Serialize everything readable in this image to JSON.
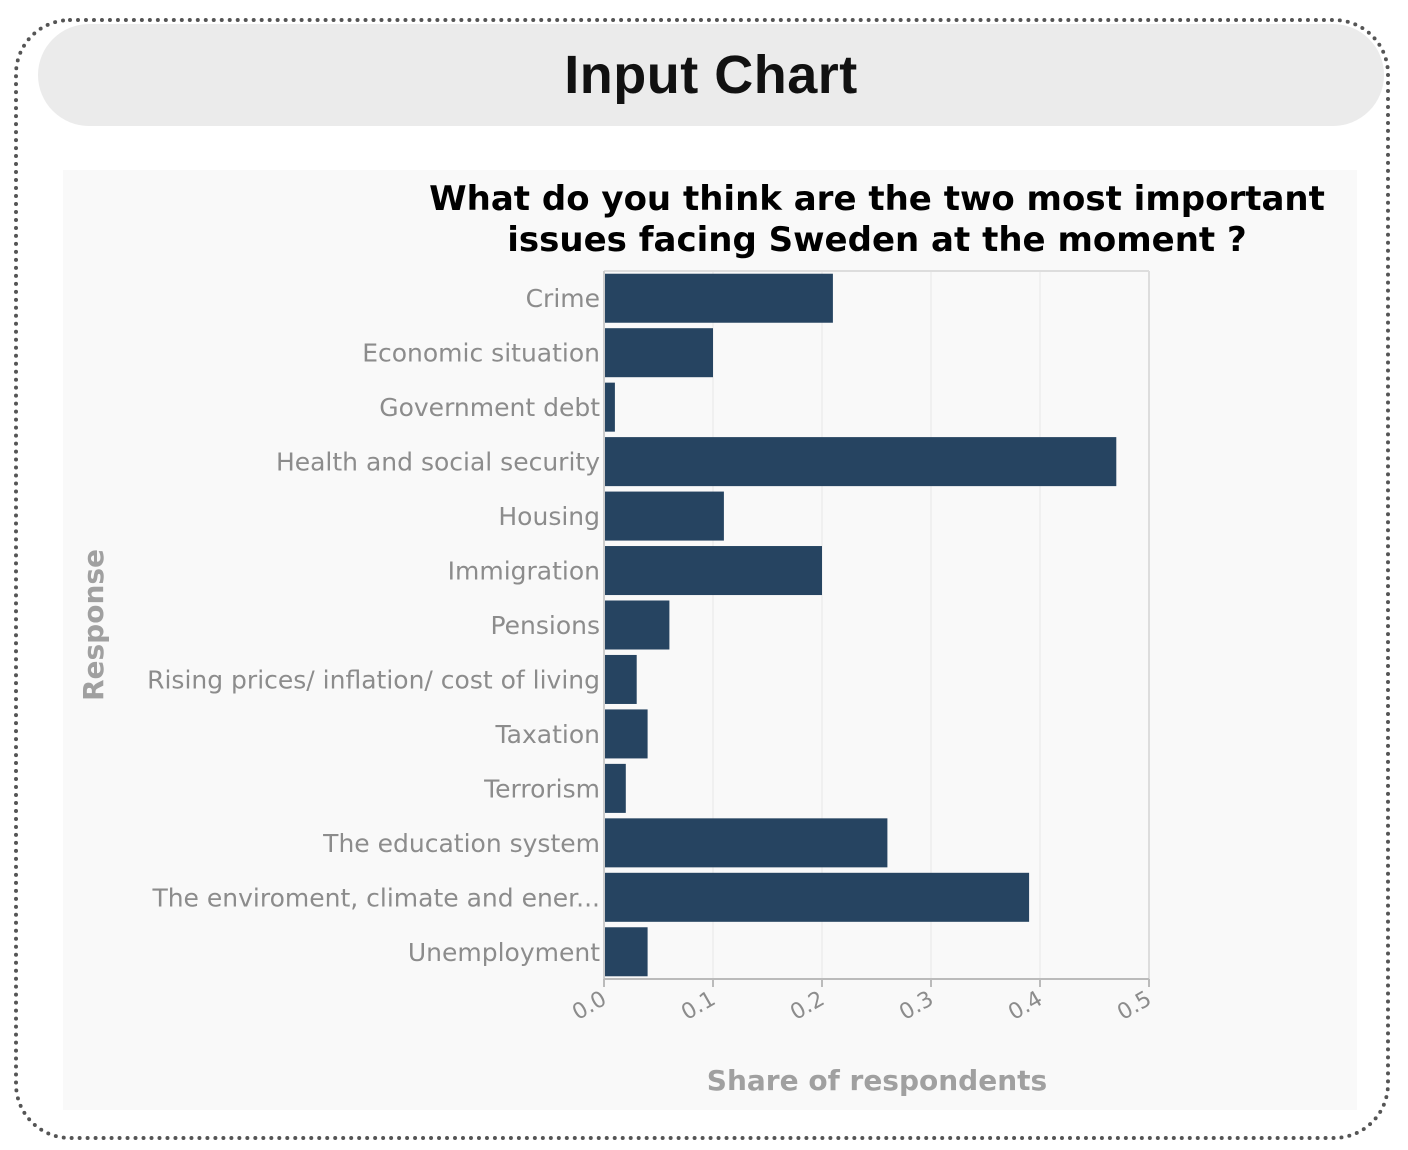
{
  "header": {
    "title": "Input Chart"
  },
  "chart_data": {
    "type": "bar",
    "orientation": "horizontal",
    "title_lines": [
      "What do you think are the two most important",
      "issues facing Sweden at the moment ?"
    ],
    "categories": [
      "Crime",
      "Economic situation",
      "Government debt",
      "Health and social security",
      "Housing",
      "Immigration",
      "Pensions",
      "Rising prices/ inflation/ cost of living",
      "Taxation",
      "Terrorism",
      "The education system",
      "The enviroment, climate and ener...",
      "Unemployment"
    ],
    "values": [
      0.21,
      0.1,
      0.01,
      0.47,
      0.11,
      0.2,
      0.06,
      0.03,
      0.04,
      0.02,
      0.26,
      0.39,
      0.04
    ],
    "xlabel": "Share of respondents",
    "ylabel": "Response",
    "xlim": [
      0,
      0.5
    ],
    "xticks": [
      "0.0",
      "0.1",
      "0.2",
      "0.3",
      "0.4",
      "0.5"
    ],
    "grid": true,
    "bar_color": "#264461"
  }
}
